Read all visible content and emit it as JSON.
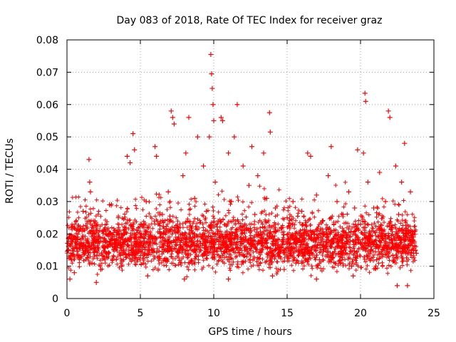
{
  "chart_data": {
    "type": "scatter",
    "title": "Day 083 of 2018, Rate Of TEC Index for receiver graz",
    "xlabel": "GPS time / hours",
    "ylabel": "ROTI / TECUs",
    "xlim": [
      0,
      25
    ],
    "ylim": [
      0,
      0.08
    ],
    "x_ticks": [
      0,
      5,
      10,
      15,
      20,
      25
    ],
    "x_tick_labels": [
      "0",
      "5",
      "10",
      "15",
      "20",
      "25"
    ],
    "y_ticks": [
      0,
      0.01,
      0.02,
      0.03,
      0.04,
      0.05,
      0.06,
      0.07,
      0.08
    ],
    "y_tick_labels": [
      "0",
      "0.01",
      "0.02",
      "0.03",
      "0.04",
      "0.05",
      "0.06",
      "0.07",
      "0.08"
    ],
    "grid": true,
    "marker": "+",
    "marker_color": "#ff0000",
    "series": [
      {
        "name": "ROTI",
        "points": [
          [
            0.1,
            0.015
          ],
          [
            0.3,
            0.022
          ],
          [
            0.5,
            0.008
          ],
          [
            0.7,
            0.019
          ],
          [
            0.9,
            0.013
          ],
          [
            1.1,
            0.027
          ],
          [
            1.3,
            0.016
          ],
          [
            1.5,
            0.043
          ],
          [
            1.55,
            0.036
          ],
          [
            1.6,
            0.033
          ],
          [
            1.7,
            0.011
          ],
          [
            1.9,
            0.024
          ],
          [
            2.1,
            0.017
          ],
          [
            2.3,
            0.009
          ],
          [
            2.5,
            0.021
          ],
          [
            2.7,
            0.014
          ],
          [
            2.9,
            0.029
          ],
          [
            3.1,
            0.012
          ],
          [
            3.3,
            0.018
          ],
          [
            3.5,
            0.025
          ],
          [
            3.7,
            0.01
          ],
          [
            3.9,
            0.02
          ],
          [
            4.1,
            0.044
          ],
          [
            4.3,
            0.042
          ],
          [
            4.5,
            0.051
          ],
          [
            4.6,
            0.046
          ],
          [
            4.8,
            0.016
          ],
          [
            5.0,
            0.023
          ],
          [
            5.2,
            0.011
          ],
          [
            5.4,
            0.03
          ],
          [
            5.6,
            0.015
          ],
          [
            5.8,
            0.019
          ],
          [
            6.0,
            0.047
          ],
          [
            6.1,
            0.044
          ],
          [
            6.3,
            0.013
          ],
          [
            6.5,
            0.026
          ],
          [
            6.7,
            0.018
          ],
          [
            6.9,
            0.033
          ],
          [
            7.1,
            0.058
          ],
          [
            7.2,
            0.056
          ],
          [
            7.3,
            0.054
          ],
          [
            7.5,
            0.022
          ],
          [
            7.7,
            0.015
          ],
          [
            7.9,
            0.038
          ],
          [
            8.1,
            0.045
          ],
          [
            8.3,
            0.056
          ],
          [
            8.5,
            0.021
          ],
          [
            8.7,
            0.031
          ],
          [
            8.9,
            0.05
          ],
          [
            9.1,
            0.017
          ],
          [
            9.3,
            0.041
          ],
          [
            9.5,
            0.027
          ],
          [
            9.7,
            0.05
          ],
          [
            9.8,
            0.0755
          ],
          [
            9.85,
            0.0695
          ],
          [
            9.9,
            0.065
          ],
          [
            9.95,
            0.06
          ],
          [
            10.0,
            0.055
          ],
          [
            10.1,
            0.036
          ],
          [
            10.3,
            0.024
          ],
          [
            10.5,
            0.056
          ],
          [
            10.6,
            0.055
          ],
          [
            10.8,
            0.019
          ],
          [
            11.0,
            0.045
          ],
          [
            11.2,
            0.03
          ],
          [
            11.4,
            0.05
          ],
          [
            11.6,
            0.06
          ],
          [
            11.8,
            0.022
          ],
          [
            12.0,
            0.041
          ],
          [
            12.2,
            0.016
          ],
          [
            12.4,
            0.035
          ],
          [
            12.6,
            0.047
          ],
          [
            12.8,
            0.026
          ],
          [
            13.0,
            0.038
          ],
          [
            13.2,
            0.02
          ],
          [
            13.4,
            0.045
          ],
          [
            13.6,
            0.031
          ],
          [
            13.8,
            0.0575
          ],
          [
            13.85,
            0.0515
          ],
          [
            14.0,
            0.017
          ],
          [
            14.2,
            0.028
          ],
          [
            14.4,
            0.013
          ],
          [
            14.6,
            0.022
          ],
          [
            14.8,
            0.009
          ],
          [
            15.0,
            0.025
          ],
          [
            15.2,
            0.015
          ],
          [
            15.4,
            0.03
          ],
          [
            15.6,
            0.011
          ],
          [
            15.8,
            0.02
          ],
          [
            16.0,
            0.027
          ],
          [
            16.2,
            0.014
          ],
          [
            16.4,
            0.045
          ],
          [
            16.6,
            0.044
          ],
          [
            16.8,
            0.018
          ],
          [
            17.0,
            0.032
          ],
          [
            17.2,
            0.012
          ],
          [
            17.4,
            0.024
          ],
          [
            17.6,
            0.016
          ],
          [
            17.8,
            0.038
          ],
          [
            18.0,
            0.047
          ],
          [
            18.2,
            0.021
          ],
          [
            18.4,
            0.03
          ],
          [
            18.6,
            0.013
          ],
          [
            18.8,
            0.026
          ],
          [
            19.0,
            0.017
          ],
          [
            19.2,
            0.033
          ],
          [
            19.4,
            0.01
          ],
          [
            19.6,
            0.028
          ],
          [
            19.8,
            0.046
          ],
          [
            20.0,
            0.023
          ],
          [
            20.2,
            0.045
          ],
          [
            20.3,
            0.0635
          ],
          [
            20.35,
            0.061
          ],
          [
            20.5,
            0.036
          ],
          [
            20.7,
            0.015
          ],
          [
            20.9,
            0.028
          ],
          [
            21.1,
            0.012
          ],
          [
            21.3,
            0.039
          ],
          [
            21.5,
            0.021
          ],
          [
            21.7,
            0.03
          ],
          [
            21.9,
            0.058
          ],
          [
            22.0,
            0.056
          ],
          [
            22.2,
            0.017
          ],
          [
            22.4,
            0.041
          ],
          [
            22.6,
            0.026
          ],
          [
            22.8,
            0.036
          ],
          [
            23.0,
            0.048
          ],
          [
            23.2,
            0.004
          ],
          [
            23.4,
            0.033
          ],
          [
            23.6,
            0.019
          ],
          [
            23.8,
            0.014
          ],
          [
            0.2,
            0.006
          ],
          [
            2.0,
            0.005
          ],
          [
            5.5,
            0.007
          ],
          [
            8.0,
            0.006
          ],
          [
            11.0,
            0.006
          ],
          [
            14.0,
            0.007
          ],
          [
            17.0,
            0.006
          ],
          [
            19.5,
            0.007
          ],
          [
            22.5,
            0.004
          ]
        ]
      }
    ]
  }
}
